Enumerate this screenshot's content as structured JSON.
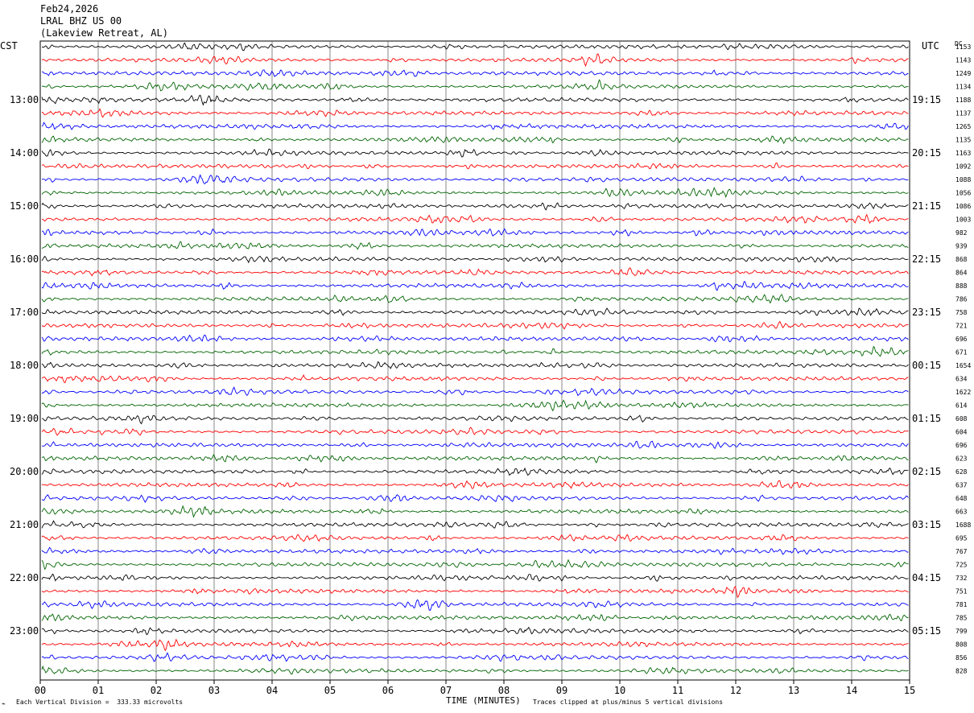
{
  "header": {
    "date": "Feb24,2026",
    "station": "LRAL BHZ US 00",
    "location": "(Lakeview Retreat, AL)"
  },
  "left_tz": "CST",
  "right_tz": "UTC",
  "right_col_header": "DC",
  "footer": {
    "scale_note": "Each Vertical Division =  333.33 microvolts",
    "xlabel": "TIME (MINUTES)",
    "clip_note": "Traces clipped at plus/minus 5 vertical divisions"
  },
  "chart_data": {
    "type": "line",
    "title": "",
    "xlabel": "TIME (MINUTES)",
    "ylabel": "",
    "xlim": [
      0,
      15
    ],
    "x_ticks": [
      "00",
      "01",
      "02",
      "03",
      "04",
      "05",
      "06",
      "07",
      "08",
      "09",
      "10",
      "11",
      "12",
      "13",
      "14",
      "15"
    ],
    "grid": true,
    "trace_colors": [
      "#000000",
      "#ff0000",
      "#0000ff",
      "#006400"
    ],
    "left_time_labels": [
      "13:00",
      "14:00",
      "15:00",
      "16:00",
      "17:00",
      "18:00",
      "19:00",
      "20:00",
      "21:00",
      "22:00",
      "23:00"
    ],
    "right_time_labels": [
      "19:15",
      "20:15",
      "21:15",
      "22:15",
      "23:15",
      "00:15",
      "01:15",
      "02:15",
      "03:15",
      "04:15",
      "05:15"
    ],
    "dc_offsets": [
      "1153",
      "1143",
      "1249",
      "1134",
      "1188",
      "1137",
      "1265",
      "1135",
      "1163",
      "1092",
      "1088",
      "1056",
      "1086",
      "1003",
      "982",
      "939",
      "868",
      "864",
      "888",
      "786",
      "758",
      "721",
      "696",
      "671",
      "1654",
      "634",
      "1622",
      "614",
      "608",
      "604",
      "696",
      "623",
      "628",
      "637",
      "648",
      "663",
      "1688",
      "695",
      "767",
      "725",
      "732",
      "751",
      "781",
      "785",
      "799",
      "808",
      "856",
      "828"
    ]
  }
}
